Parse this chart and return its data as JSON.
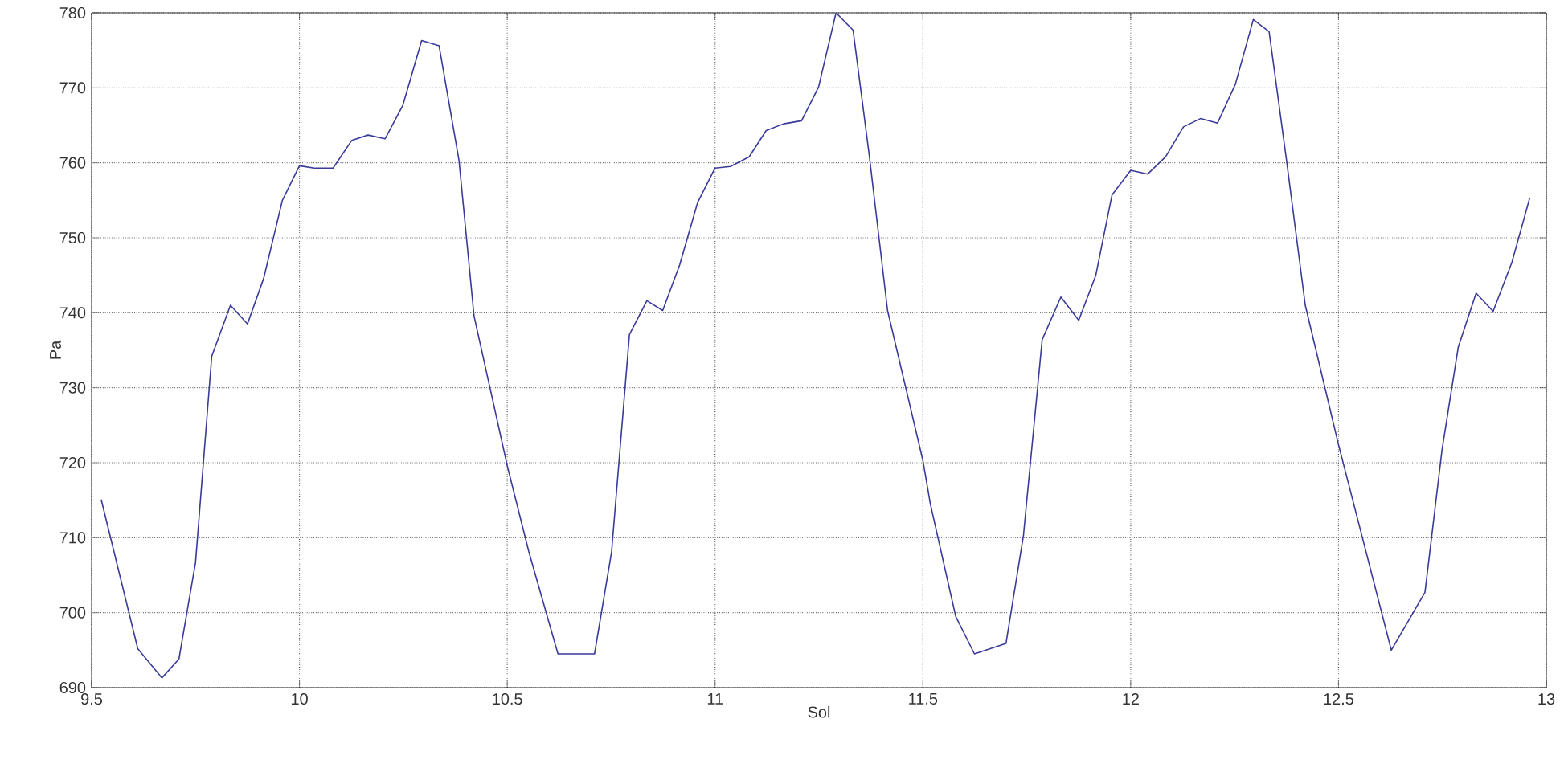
{
  "chart_data": {
    "type": "line",
    "xlabel": "Sol",
    "ylabel": "Pa",
    "xlim": [
      9.5,
      13
    ],
    "ylim": [
      690,
      780
    ],
    "xticks": [
      9.5,
      10,
      10.5,
      11,
      11.5,
      12,
      12.5,
      13
    ],
    "yticks": [
      690,
      700,
      710,
      720,
      730,
      740,
      750,
      760,
      770,
      780
    ],
    "grid": true,
    "marker": "none",
    "line_style": "solid",
    "series": [
      {
        "color": "#3a3a9a",
        "x": [
          9.523,
          9.611,
          9.669,
          9.71,
          9.75,
          9.789,
          9.834,
          9.875,
          9.914,
          9.959,
          10.0,
          10.036,
          10.081,
          10.126,
          10.165,
          10.206,
          10.249,
          10.294,
          10.336,
          10.384,
          10.42,
          10.5,
          10.552,
          10.622,
          10.71,
          10.751,
          10.794,
          10.836,
          10.874,
          10.915,
          10.958,
          11.0,
          11.037,
          11.082,
          11.123,
          11.165,
          11.208,
          11.249,
          11.291,
          11.332,
          11.371,
          11.415,
          11.5,
          11.518,
          11.579,
          11.624,
          11.7,
          11.742,
          11.787,
          11.832,
          11.875,
          11.916,
          11.955,
          12.0,
          12.041,
          12.084,
          12.127,
          12.168,
          12.209,
          12.252,
          12.295,
          12.333,
          12.375,
          12.42,
          12.5,
          12.627,
          12.708,
          12.749,
          12.788,
          12.831,
          12.872,
          12.917,
          12.96
        ],
        "values": [
          715.1,
          695.2,
          691.3,
          693.8,
          706.7,
          734.2,
          741.0,
          738.5,
          744.6,
          755.0,
          759.6,
          759.3,
          759.3,
          763.0,
          763.7,
          763.2,
          767.7,
          776.3,
          775.6,
          760.3,
          739.6,
          719.6,
          708.1,
          694.5,
          694.5,
          708.1,
          737.1,
          741.6,
          740.3,
          746.4,
          754.7,
          759.3,
          759.5,
          760.8,
          764.3,
          765.2,
          765.6,
          770.1,
          780.0,
          777.7,
          761.0,
          740.3,
          720.3,
          714.5,
          699.5,
          694.5,
          695.9,
          710.3,
          736.4,
          742.1,
          739.0,
          745.0,
          755.7,
          759.0,
          758.5,
          760.8,
          764.8,
          765.9,
          765.3,
          770.5,
          779.1,
          777.5,
          760.3,
          741.0,
          722.4,
          695.0,
          702.7,
          721.7,
          735.4,
          742.6,
          740.2,
          746.7,
          755.3
        ]
      }
    ]
  }
}
